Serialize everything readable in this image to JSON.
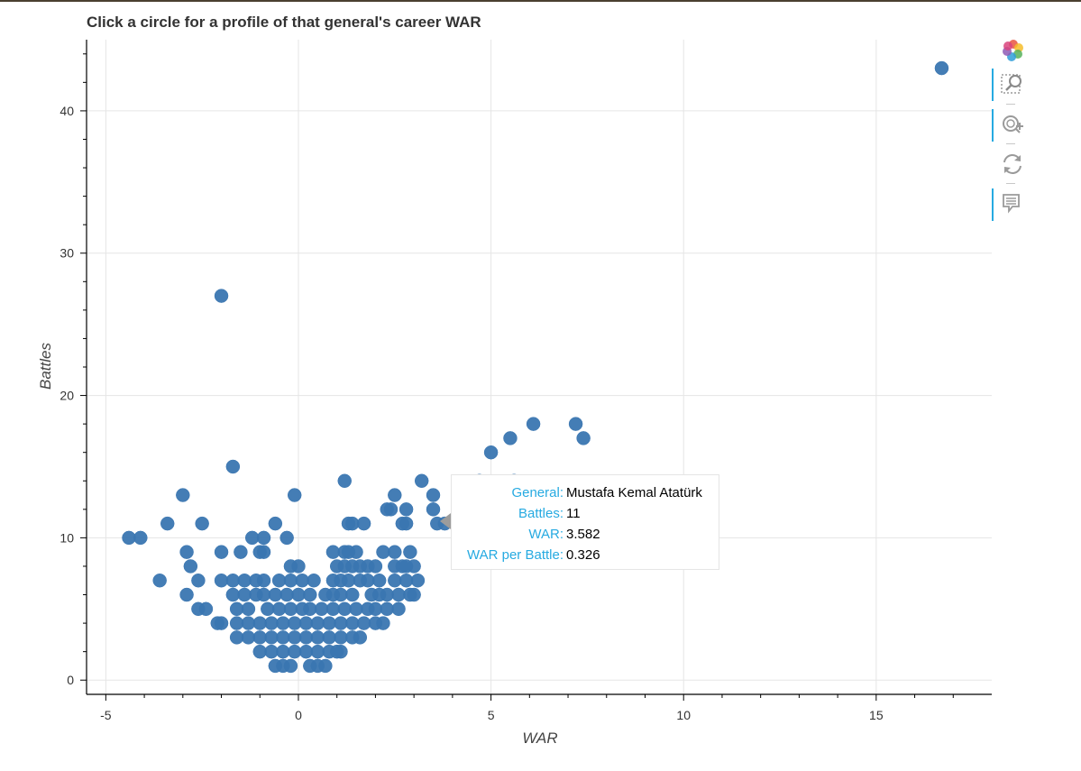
{
  "chart_data": {
    "type": "scatter",
    "title": "Click a circle for a profile of that general's career WAR",
    "xlabel": "WAR",
    "ylabel": "Battles",
    "xlim": [
      -5.5,
      18
    ],
    "ylim": [
      -1,
      45
    ],
    "x_ticks": [
      -5,
      0,
      5,
      10,
      15
    ],
    "x_tick_labels": [
      "-5",
      "0",
      "5",
      "10",
      "15"
    ],
    "y_ticks": [
      0,
      10,
      20,
      30,
      40
    ],
    "y_tick_labels": [
      "0",
      "10",
      "20",
      "30",
      "40"
    ],
    "grid": true,
    "marker_color": "#3a76b1",
    "series": [
      {
        "points": [
          [
            16.7,
            43
          ],
          [
            -2.0,
            27
          ],
          [
            -1.7,
            15
          ],
          [
            -0.1,
            13
          ],
          [
            -3.0,
            13
          ],
          [
            6.1,
            18
          ],
          [
            7.2,
            18
          ],
          [
            7.4,
            17
          ],
          [
            5.5,
            17
          ],
          [
            5.0,
            16
          ],
          [
            4.7,
            14
          ],
          [
            5.6,
            14
          ],
          [
            3.2,
            14
          ],
          [
            1.2,
            14
          ],
          [
            3.5,
            13
          ],
          [
            2.5,
            13
          ],
          [
            -4.4,
            10
          ],
          [
            -4.1,
            10
          ],
          [
            -3.4,
            11
          ],
          [
            -2.5,
            11
          ],
          [
            -3.6,
            7
          ],
          [
            -2.9,
            9
          ],
          [
            -2.8,
            8
          ],
          [
            -2.6,
            7
          ],
          [
            -2.9,
            6
          ],
          [
            -2.6,
            5
          ],
          [
            -2.4,
            5
          ],
          [
            -2.1,
            4
          ],
          [
            -0.6,
            11
          ],
          [
            -0.3,
            10
          ],
          [
            -1.2,
            10
          ],
          [
            -0.9,
            10
          ],
          [
            -2.0,
            9
          ],
          [
            -1.5,
            9
          ],
          [
            -1.0,
            9
          ],
          [
            -0.9,
            9
          ],
          [
            -0.2,
            8
          ],
          [
            0.0,
            8
          ],
          [
            1.3,
            11
          ],
          [
            1.4,
            11
          ],
          [
            1.7,
            11
          ],
          [
            2.3,
            12
          ],
          [
            2.4,
            12
          ],
          [
            2.8,
            12
          ],
          [
            2.7,
            11
          ],
          [
            2.8,
            11
          ],
          [
            3.5,
            12
          ],
          [
            3.6,
            11
          ],
          [
            4.2,
            11
          ],
          [
            4.6,
            10
          ],
          [
            0.9,
            9
          ],
          [
            1.2,
            9
          ],
          [
            1.3,
            9
          ],
          [
            1.5,
            9
          ],
          [
            2.2,
            9
          ],
          [
            2.5,
            9
          ],
          [
            2.9,
            9
          ],
          [
            1.0,
            8
          ],
          [
            1.2,
            8
          ],
          [
            1.4,
            8
          ],
          [
            1.6,
            8
          ],
          [
            1.8,
            8
          ],
          [
            2.0,
            8
          ],
          [
            2.5,
            8
          ],
          [
            2.7,
            8
          ],
          [
            2.8,
            8
          ],
          [
            3.0,
            8
          ],
          [
            -2.0,
            7
          ],
          [
            -1.7,
            7
          ],
          [
            -1.4,
            7
          ],
          [
            -1.1,
            7
          ],
          [
            -0.9,
            7
          ],
          [
            -0.5,
            7
          ],
          [
            -0.2,
            7
          ],
          [
            0.1,
            7
          ],
          [
            0.4,
            7
          ],
          [
            0.9,
            7
          ],
          [
            1.1,
            7
          ],
          [
            1.3,
            7
          ],
          [
            1.6,
            7
          ],
          [
            1.8,
            7
          ],
          [
            2.1,
            7
          ],
          [
            2.5,
            7
          ],
          [
            2.8,
            7
          ],
          [
            3.1,
            7
          ],
          [
            -1.7,
            6
          ],
          [
            -1.4,
            6
          ],
          [
            -1.1,
            6
          ],
          [
            -0.9,
            6
          ],
          [
            -0.6,
            6
          ],
          [
            -0.3,
            6
          ],
          [
            0.0,
            6
          ],
          [
            0.3,
            6
          ],
          [
            0.7,
            6
          ],
          [
            0.9,
            6
          ],
          [
            1.1,
            6
          ],
          [
            1.4,
            6
          ],
          [
            1.9,
            6
          ],
          [
            2.1,
            6
          ],
          [
            2.3,
            6
          ],
          [
            2.6,
            6
          ],
          [
            2.9,
            6
          ],
          [
            3.0,
            6
          ],
          [
            -1.6,
            5
          ],
          [
            -1.3,
            5
          ],
          [
            -0.8,
            5
          ],
          [
            -0.5,
            5
          ],
          [
            -0.2,
            5
          ],
          [
            0.1,
            5
          ],
          [
            0.3,
            5
          ],
          [
            0.6,
            5
          ],
          [
            0.9,
            5
          ],
          [
            1.2,
            5
          ],
          [
            1.5,
            5
          ],
          [
            1.8,
            5
          ],
          [
            2.0,
            5
          ],
          [
            2.3,
            5
          ],
          [
            2.6,
            5
          ],
          [
            -2.0,
            4
          ],
          [
            -1.6,
            4
          ],
          [
            -1.3,
            4
          ],
          [
            -1.0,
            4
          ],
          [
            -0.7,
            4
          ],
          [
            -0.4,
            4
          ],
          [
            -0.1,
            4
          ],
          [
            0.2,
            4
          ],
          [
            0.5,
            4
          ],
          [
            0.8,
            4
          ],
          [
            1.1,
            4
          ],
          [
            1.4,
            4
          ],
          [
            1.7,
            4
          ],
          [
            2.0,
            4
          ],
          [
            2.2,
            4
          ],
          [
            -1.6,
            3
          ],
          [
            -1.3,
            3
          ],
          [
            -1.0,
            3
          ],
          [
            -0.7,
            3
          ],
          [
            -0.4,
            3
          ],
          [
            -0.1,
            3
          ],
          [
            0.2,
            3
          ],
          [
            0.5,
            3
          ],
          [
            0.8,
            3
          ],
          [
            1.1,
            3
          ],
          [
            1.4,
            3
          ],
          [
            1.6,
            3
          ],
          [
            -1.0,
            2
          ],
          [
            -0.7,
            2
          ],
          [
            -0.4,
            2
          ],
          [
            -0.1,
            2
          ],
          [
            0.2,
            2
          ],
          [
            0.5,
            2
          ],
          [
            0.8,
            2
          ],
          [
            1.0,
            2
          ],
          [
            1.1,
            2
          ],
          [
            -0.6,
            1
          ],
          [
            -0.4,
            1
          ],
          [
            -0.2,
            1
          ],
          [
            0.3,
            1
          ],
          [
            0.5,
            1
          ],
          [
            0.7,
            1
          ],
          [
            3.8,
            11
          ]
        ]
      }
    ]
  },
  "tooltip": {
    "rows": [
      {
        "label": "General:",
        "value": "Mustafa Kemal Atatürk"
      },
      {
        "label": "Battles:",
        "value": "11"
      },
      {
        "label": "WAR:",
        "value": "3.582"
      },
      {
        "label": "WAR per Battle:",
        "value": "0.326"
      }
    ]
  },
  "toolbar": {
    "tools": [
      {
        "name": "bokeh-logo-icon",
        "active": false
      },
      {
        "name": "box-zoom-icon",
        "active": true
      },
      {
        "name": "wheel-zoom-icon",
        "active": true
      },
      {
        "name": "reset-icon",
        "active": false
      },
      {
        "name": "hover-icon",
        "active": true
      }
    ]
  }
}
